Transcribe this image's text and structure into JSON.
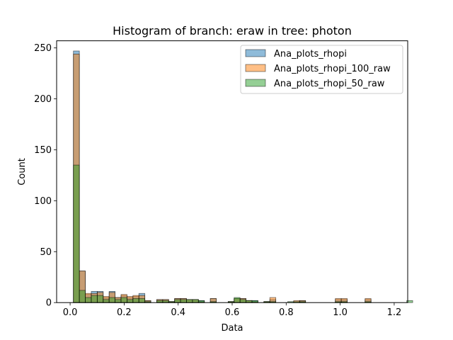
{
  "chart_data": {
    "type": "bar",
    "title": "Histogram of branch: eraw in tree: photon",
    "xlabel": "Data",
    "ylabel": "Count",
    "xlim": [
      -0.05,
      1.25
    ],
    "ylim": [
      0,
      257
    ],
    "xticks": [
      0.0,
      0.2,
      0.4,
      0.6,
      0.8,
      1.0,
      1.2
    ],
    "xtick_labels": [
      "0.0",
      "0.2",
      "0.4",
      "0.6",
      "0.8",
      "1.0",
      "1.2"
    ],
    "yticks": [
      0,
      50,
      100,
      150,
      200,
      250
    ],
    "ytick_labels": [
      "0",
      "50",
      "100",
      "150",
      "200",
      "250"
    ],
    "legend_position": "top-right",
    "bin_start": 0.0122,
    "bin_width": 0.02204,
    "series": [
      {
        "name": "Ana_plots_rhopi",
        "color": "#1f77b4",
        "values": [
          247,
          31,
          8,
          11,
          11,
          5,
          11,
          5,
          7,
          5,
          6,
          9,
          2,
          0,
          3,
          3,
          1,
          4,
          4,
          3,
          3,
          2,
          0,
          4,
          0,
          0,
          1,
          4,
          4,
          2,
          2,
          0,
          1,
          3,
          0,
          0,
          0,
          0,
          2,
          0,
          0,
          0,
          0,
          0,
          3,
          3,
          0,
          0,
          0,
          3,
          0,
          0,
          0,
          0,
          0,
          0,
          0
        ]
      },
      {
        "name": "Ana_plots_rhopi_100_raw",
        "color": "#ff7f0e",
        "values": [
          244,
          31,
          9,
          9,
          10,
          6,
          10,
          5,
          8,
          6,
          7,
          7,
          2,
          0,
          3,
          3,
          1,
          4,
          4,
          3,
          3,
          1,
          0,
          4,
          0,
          0,
          1,
          4,
          4,
          2,
          1,
          0,
          1,
          5,
          0,
          0,
          0,
          2,
          2,
          0,
          0,
          0,
          0,
          0,
          4,
          4,
          0,
          0,
          0,
          4,
          0,
          0,
          0,
          0,
          0,
          0,
          0
        ]
      },
      {
        "name": "Ana_plots_rhopi_50_raw",
        "color": "#2ca02c",
        "values": [
          135,
          12,
          5,
          7,
          7,
          3,
          5,
          3,
          5,
          3,
          4,
          4,
          1,
          0,
          2,
          2,
          1,
          3,
          3,
          3,
          3,
          2,
          0,
          1,
          0,
          0,
          1,
          5,
          3,
          2,
          2,
          0,
          1,
          1,
          0,
          0,
          1,
          1,
          1,
          0,
          0,
          0,
          0,
          0,
          1,
          1,
          0,
          0,
          0,
          1,
          0,
          0,
          0,
          0,
          0,
          0,
          2
        ]
      }
    ]
  }
}
